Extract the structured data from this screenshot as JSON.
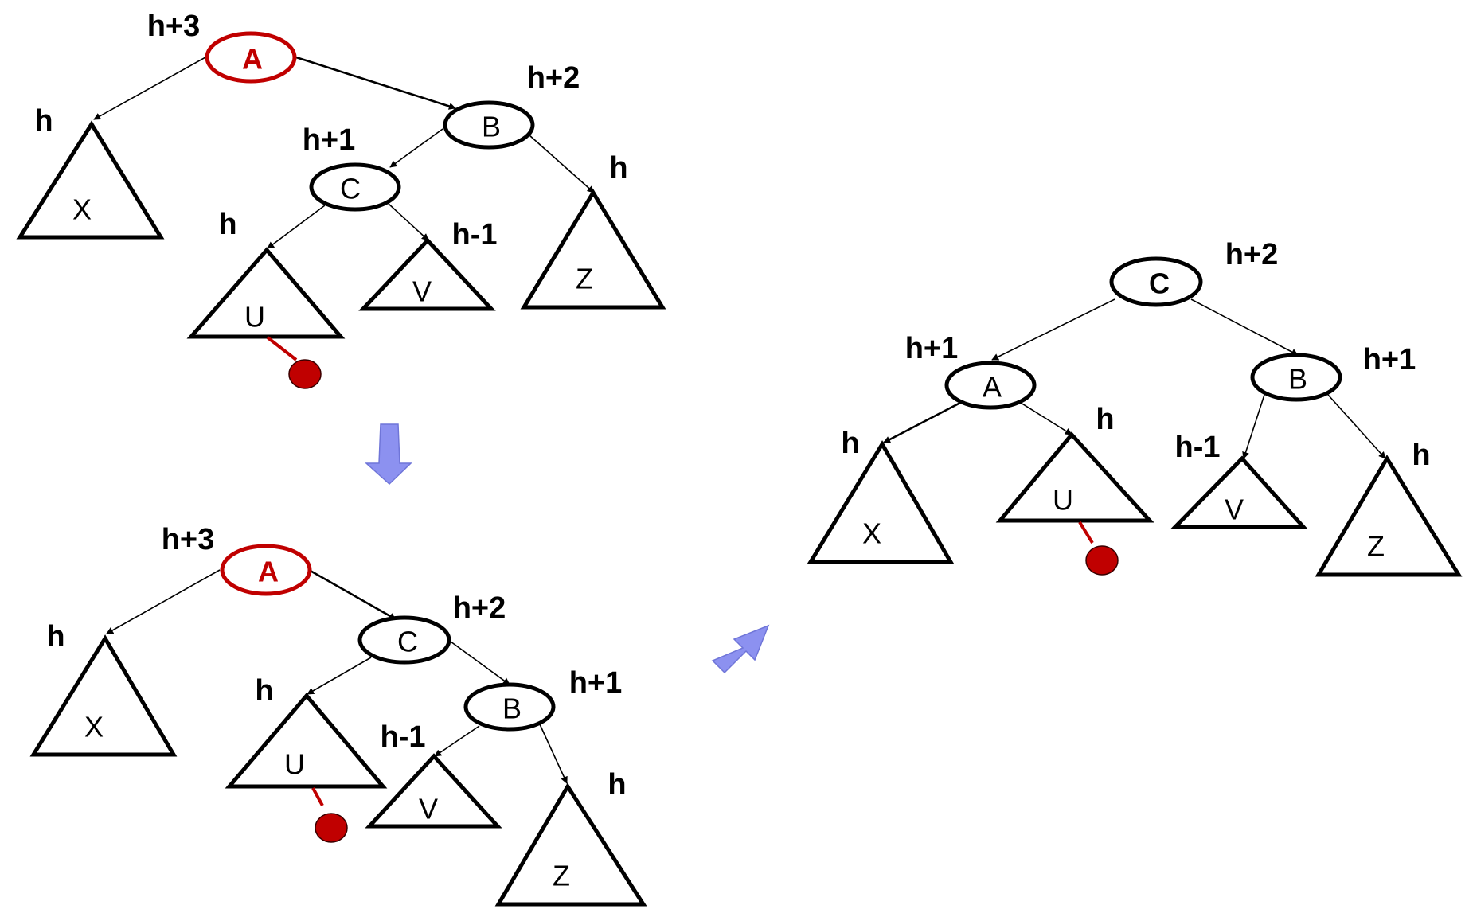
{
  "diagrams": [
    {
      "nodes": [
        {
          "id": "A",
          "label": "A",
          "height": "h+3",
          "highlight": true
        },
        {
          "id": "B",
          "label": "B",
          "height": "h+2"
        },
        {
          "id": "C",
          "label": "C",
          "height": "h+1"
        }
      ],
      "subtrees": [
        {
          "id": "X",
          "label": "X",
          "height": "h"
        },
        {
          "id": "U",
          "label": "U",
          "height": "h",
          "inserted": true
        },
        {
          "id": "V",
          "label": "V",
          "height": "h-1"
        },
        {
          "id": "Z",
          "label": "Z",
          "height": "h"
        }
      ]
    },
    {
      "nodes": [
        {
          "id": "A",
          "label": "A",
          "height": "h+3",
          "highlight": true
        },
        {
          "id": "C",
          "label": "C",
          "height": "h+2"
        },
        {
          "id": "B",
          "label": "B",
          "height": "h+1"
        }
      ],
      "subtrees": [
        {
          "id": "X",
          "label": "X",
          "height": "h"
        },
        {
          "id": "U",
          "label": "U",
          "height": "h",
          "inserted": true
        },
        {
          "id": "V",
          "label": "V",
          "height": "h-1"
        },
        {
          "id": "Z",
          "label": "Z",
          "height": "h"
        }
      ]
    },
    {
      "nodes": [
        {
          "id": "C",
          "label": "C",
          "height": "h+2"
        },
        {
          "id": "A",
          "label": "A",
          "height": "h+1"
        },
        {
          "id": "B",
          "label": "B",
          "height": "h+1"
        }
      ],
      "subtrees": [
        {
          "id": "X",
          "label": "X",
          "height": "h"
        },
        {
          "id": "U",
          "label": "U",
          "height": "h",
          "inserted": true
        },
        {
          "id": "V",
          "label": "V",
          "height": "h-1"
        },
        {
          "id": "Z",
          "label": "Z",
          "height": "h"
        }
      ]
    }
  ],
  "colors": {
    "highlight": "#c00000",
    "arrow": "#8c91f0",
    "stroke": "#000000"
  },
  "icons": [
    "down-arrow-icon",
    "up-right-arrow-icon"
  ]
}
